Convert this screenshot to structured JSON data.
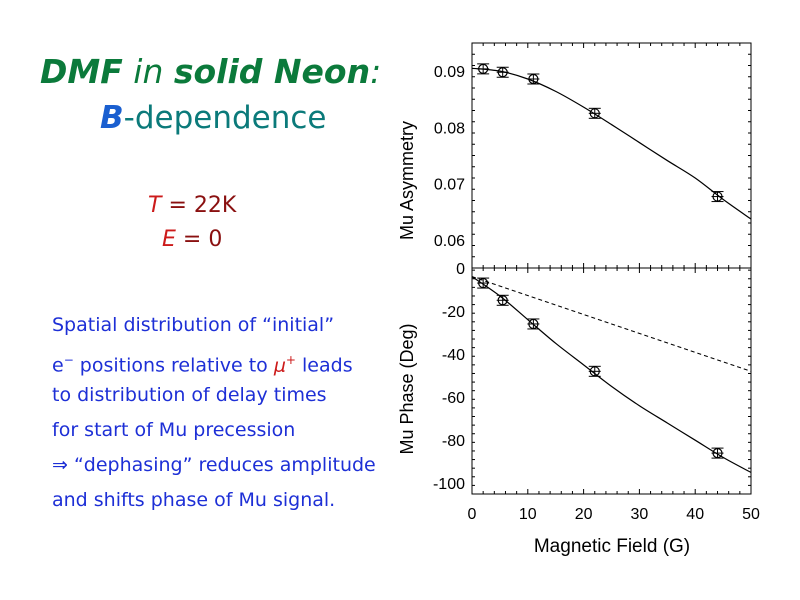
{
  "slide": {
    "title_part1": "DMF",
    "title_part2": " in ",
    "title_part3": "solid Neon",
    "title_part4": ":",
    "subtitle_symbol": "B",
    "subtitle_text": "-dependence",
    "temp_symbol": "T",
    "temp_value": " = 22K",
    "field_symbol": "E",
    "field_value": " = 0",
    "description": {
      "line1": "Spatial distribution of “initial”",
      "line2_a": "e",
      "line2_sup1": "−",
      "line2_b": " positions relative to ",
      "line2_mu": "μ",
      "line2_sup2": "+",
      "line2_c": " leads",
      "line3": "to distribution of delay times",
      "line4": "for start of Mu precession",
      "line5": "⇒ “dephasing” reduces amplitude",
      "line6": "and shifts phase of Mu signal."
    }
  },
  "chart_data": [
    {
      "type": "scatter",
      "ylabel": "Mu Asymmetry",
      "xlabel": "",
      "xlim": [
        0,
        50
      ],
      "ylim": [
        0.055,
        0.095
      ],
      "yticks": [
        0.06,
        0.07,
        0.08,
        0.09
      ],
      "ytick_labels": [
        "0.06",
        "0.07",
        "0.08",
        "0.09"
      ],
      "points": [
        {
          "x": 2,
          "y": 0.0904
        },
        {
          "x": 5.5,
          "y": 0.0898
        },
        {
          "x": 11,
          "y": 0.0886
        },
        {
          "x": 22,
          "y": 0.0825
        },
        {
          "x": 44,
          "y": 0.0677
        }
      ],
      "fit_curve": {
        "style": "solid",
        "x": [
          0,
          5,
          10,
          15,
          20,
          25,
          30,
          35,
          40,
          45,
          50
        ],
        "y": [
          0.0905,
          0.09,
          0.0886,
          0.0864,
          0.0836,
          0.0805,
          0.0773,
          0.0741,
          0.071,
          0.0672,
          0.0637
        ]
      }
    },
    {
      "type": "scatter",
      "ylabel": "Mu Phase (Deg)",
      "xlabel": "Magnetic Field (G)",
      "xlim": [
        0,
        50
      ],
      "ylim": [
        -105,
        0
      ],
      "yticks": [
        0,
        -20,
        -40,
        -60,
        -80,
        -100
      ],
      "ytick_labels": [
        "0",
        "-20",
        "-40",
        "-60",
        "-80",
        "-100"
      ],
      "xticks": [
        0,
        10,
        20,
        30,
        40,
        50
      ],
      "xtick_labels": [
        "0",
        "10",
        "20",
        "30",
        "40",
        "50"
      ],
      "points": [
        {
          "x": 2,
          "y": -7
        },
        {
          "x": 5.5,
          "y": -15
        },
        {
          "x": 11,
          "y": -26
        },
        {
          "x": 22,
          "y": -48
        },
        {
          "x": 44,
          "y": -86
        }
      ],
      "fit_curve": {
        "style": "solid",
        "x": [
          0,
          5,
          10,
          15,
          20,
          25,
          30,
          35,
          40,
          45,
          50
        ],
        "y": [
          -4,
          -13,
          -24,
          -35,
          -45,
          -55,
          -64,
          -72,
          -80,
          -88,
          -95
        ]
      },
      "linear_line": {
        "style": "dashed",
        "x": [
          0,
          50
        ],
        "y": [
          -4,
          -48
        ]
      }
    }
  ]
}
